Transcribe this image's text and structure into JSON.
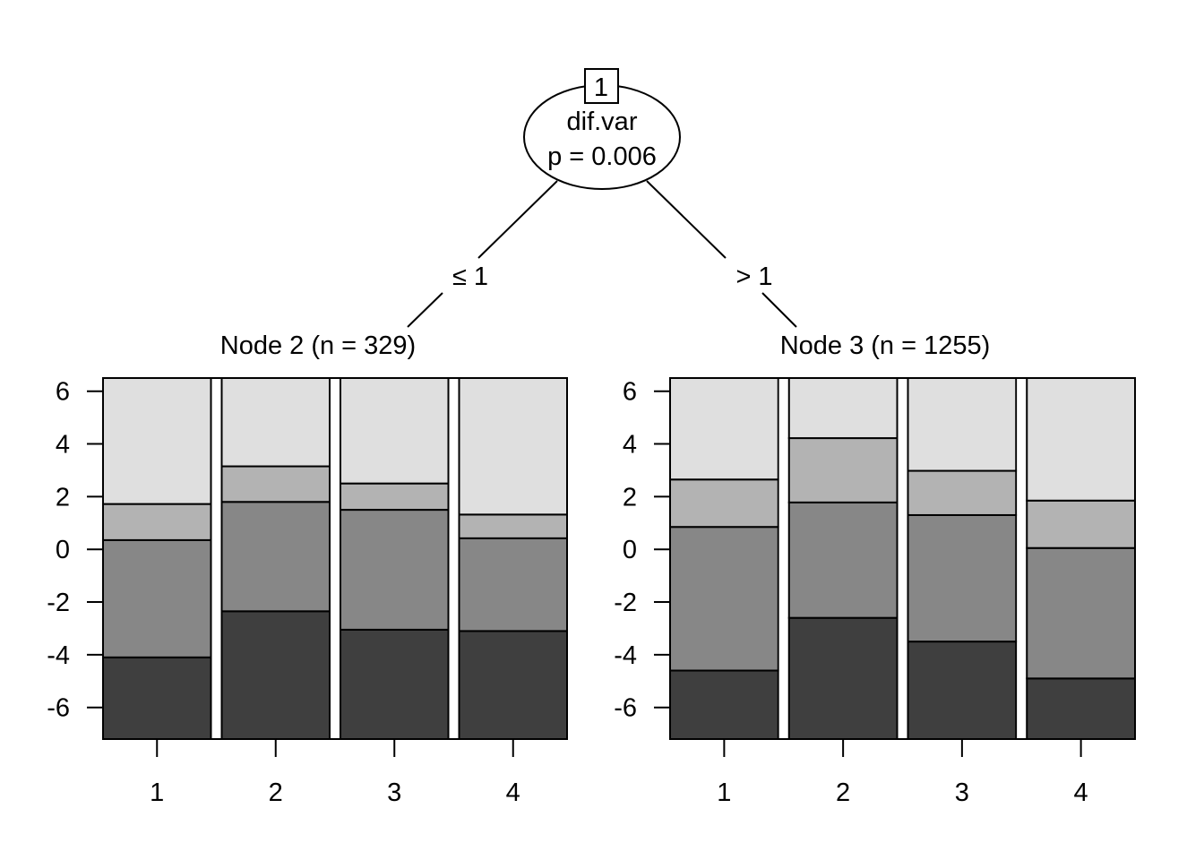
{
  "split": {
    "id_label": "1",
    "variable": "dif.var",
    "p_text": "p = 0.006",
    "left_edge": "≤ 1",
    "right_edge": "> 1"
  },
  "chart_data": [
    {
      "type": "bar",
      "stacked": true,
      "title": "Node 2 (n = 329)",
      "categories": [
        "1",
        "2",
        "3",
        "4"
      ],
      "ylim": [
        -7.2,
        6.5
      ],
      "yticks": [
        6,
        4,
        2,
        0,
        -2,
        -4,
        -6
      ],
      "boundaries": [
        [
          -4.1,
          0.35,
          1.72
        ],
        [
          -2.35,
          1.8,
          3.15
        ],
        [
          -3.05,
          1.5,
          2.5
        ],
        [
          -3.1,
          0.42,
          1.32
        ]
      ],
      "segment_colors": [
        "#3f3f3f",
        "#878787",
        "#b3b3b3",
        "#dfdfdf"
      ]
    },
    {
      "type": "bar",
      "stacked": true,
      "title": "Node 3 (n = 1255)",
      "categories": [
        "1",
        "2",
        "3",
        "4"
      ],
      "ylim": [
        -7.2,
        6.5
      ],
      "yticks": [
        6,
        4,
        2,
        0,
        -2,
        -4,
        -6
      ],
      "boundaries": [
        [
          -4.6,
          0.85,
          2.65
        ],
        [
          -2.6,
          1.78,
          4.22
        ],
        [
          -3.5,
          1.3,
          2.98
        ],
        [
          -4.9,
          0.05,
          1.85
        ]
      ],
      "segment_colors": [
        "#3f3f3f",
        "#878787",
        "#b3b3b3",
        "#dfdfdf"
      ]
    }
  ]
}
